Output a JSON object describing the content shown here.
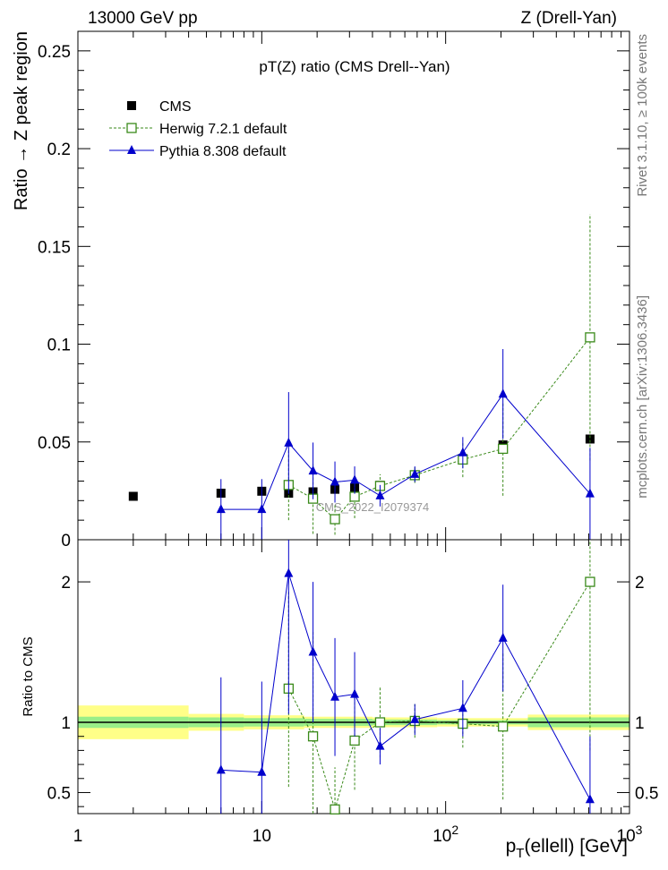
{
  "header": {
    "left": "13000 GeV pp",
    "right": "Z (Drell-Yan)"
  },
  "side_notes": {
    "rivet": "Rivet 3.1.10, ≥ 100k events",
    "mcplots": "mcplots.cern.ch [arXiv:1306.3436]"
  },
  "watermark": "CMS_2022_I2079374",
  "colors": {
    "cms": "#000000",
    "herwig": "#3a8a1a",
    "pythia": "#0000cc",
    "band_inner": "#99ee88",
    "band_outer": "#ffff88"
  },
  "chart_data": [
    {
      "type": "scatter",
      "title": "pT(Z) ratio (CMS Drell--Yan)",
      "ylabel": "Ratio → Z peak region",
      "xscale": "log",
      "xlim": [
        1,
        1000
      ],
      "ylim": [
        0,
        0.26
      ],
      "yticks": [
        0,
        0.05,
        0.1,
        0.15,
        0.2,
        0.25
      ],
      "ytick_labels": [
        "0",
        "0.05",
        "0.1",
        "0.15",
        "0.2",
        "0.25"
      ],
      "legend_position": "top-left",
      "series": [
        {
          "name": "CMS",
          "marker": "square-filled",
          "x": [
            2,
            6,
            10,
            14,
            19,
            25,
            32,
            44,
            68,
            124,
            205,
            610
          ],
          "y": [
            0.0222,
            0.0238,
            0.0248,
            0.0238,
            0.0245,
            0.0258,
            0.0265,
            0.0278,
            0.0328,
            0.0415,
            0.0485,
            0.0515
          ]
        },
        {
          "name": "Herwig 7.2.1 default",
          "marker": "square-open",
          "line": "dashed",
          "x": [
            14,
            19,
            25,
            32,
            44,
            68,
            124,
            205,
            610
          ],
          "y": [
            0.028,
            0.021,
            0.0105,
            0.022,
            0.0275,
            0.033,
            0.041,
            0.0465,
            0.1035
          ],
          "yerr": [
            0.018,
            0.018,
            0.008,
            0.011,
            0.006,
            0.004,
            0.009,
            0.024,
            0.063
          ]
        },
        {
          "name": "Pythia 8.308 default",
          "marker": "triangle",
          "line": "solid",
          "x": [
            6,
            10,
            14,
            19,
            25,
            32,
            44,
            68,
            124,
            205,
            610
          ],
          "y": [
            0.0155,
            0.0155,
            0.0495,
            0.0352,
            0.0295,
            0.0305,
            0.0225,
            0.0335,
            0.0445,
            0.0745,
            0.0235
          ],
          "yerr": [
            0.0155,
            0.0155,
            0.026,
            0.0145,
            0.0105,
            0.007,
            0.0055,
            0.004,
            0.008,
            0.023,
            0.0235
          ]
        }
      ]
    },
    {
      "type": "scatter",
      "ylabel": "Ratio to CMS",
      "xlabel": "p_T(ellell) [GeV]",
      "xscale": "log",
      "xlim": [
        1,
        1000
      ],
      "ylim": [
        0.35,
        2.3
      ],
      "xticks": [
        1,
        10,
        100,
        1000
      ],
      "xtick_labels": [
        "1",
        "10",
        "10^2",
        "10^3"
      ],
      "yticks": [
        0.5,
        1,
        2
      ],
      "ytick_labels": [
        "0.5",
        "1",
        "2"
      ],
      "bands": [
        {
          "x_range": [
            1,
            4
          ],
          "inner": 0.04,
          "outer": 0.12
        },
        {
          "x_range": [
            4,
            8
          ],
          "inner": 0.035,
          "outer": 0.06
        },
        {
          "x_range": [
            8,
            17
          ],
          "inner": 0.03,
          "outer": 0.05
        },
        {
          "x_range": [
            17,
            40
          ],
          "inner": 0.025,
          "outer": 0.04
        },
        {
          "x_range": [
            40,
            90
          ],
          "inner": 0.02,
          "outer": 0.035
        },
        {
          "x_range": [
            90,
            280
          ],
          "inner": 0.015,
          "outer": 0.03
        },
        {
          "x_range": [
            280,
            1000
          ],
          "inner": 0.035,
          "outer": 0.055
        }
      ],
      "series": [
        {
          "name": "Herwig 7.2.1 default",
          "marker": "square-open",
          "line": "dashed",
          "x": [
            14,
            19,
            25,
            32,
            44,
            68,
            124,
            205,
            610
          ],
          "y": [
            1.24,
            0.9,
            0.38,
            0.87,
            1.0,
            1.01,
            0.99,
            0.97,
            2.0
          ],
          "yerr": [
            0.7,
            0.75,
            0.3,
            0.35,
            0.25,
            0.12,
            0.17,
            0.52,
            1.2
          ]
        },
        {
          "name": "Pythia 8.308 default",
          "marker": "triangle",
          "line": "solid",
          "x": [
            6,
            10,
            14,
            19,
            25,
            32,
            44,
            68,
            124,
            205,
            610
          ],
          "y": [
            0.66,
            0.645,
            2.06,
            1.5,
            1.18,
            1.2,
            0.83,
            1.02,
            1.1,
            1.6,
            0.45
          ],
          "yerr": [
            0.66,
            0.645,
            1.0,
            0.5,
            0.42,
            0.3,
            0.13,
            0.11,
            0.2,
            0.38,
            0.45
          ]
        }
      ]
    }
  ]
}
